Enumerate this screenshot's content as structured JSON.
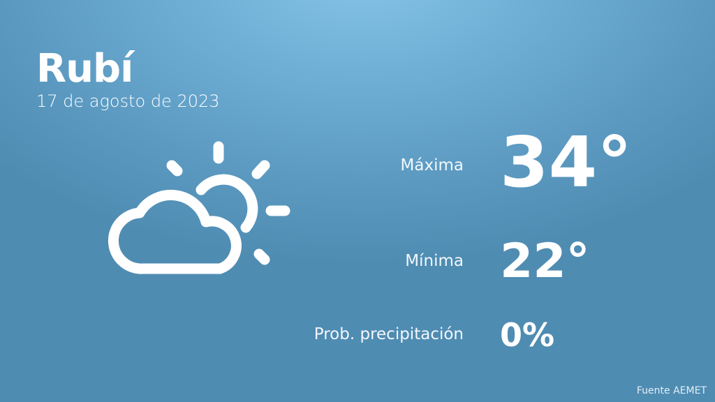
{
  "city": "Rubí",
  "date": "17 de agosto de 2023",
  "weather_icon": "partly-cloudy-icon",
  "stats": {
    "max_label": "Máxima",
    "max_value": "34°",
    "min_label": "Mínima",
    "min_value": "22°",
    "precip_label": "Prob. precipitación",
    "precip_value": "0%"
  },
  "source": "Fuente AEMET",
  "colors": {
    "background_top": "#86c5e8",
    "background_bottom": "#4f8cb2",
    "text": "#ffffff"
  }
}
